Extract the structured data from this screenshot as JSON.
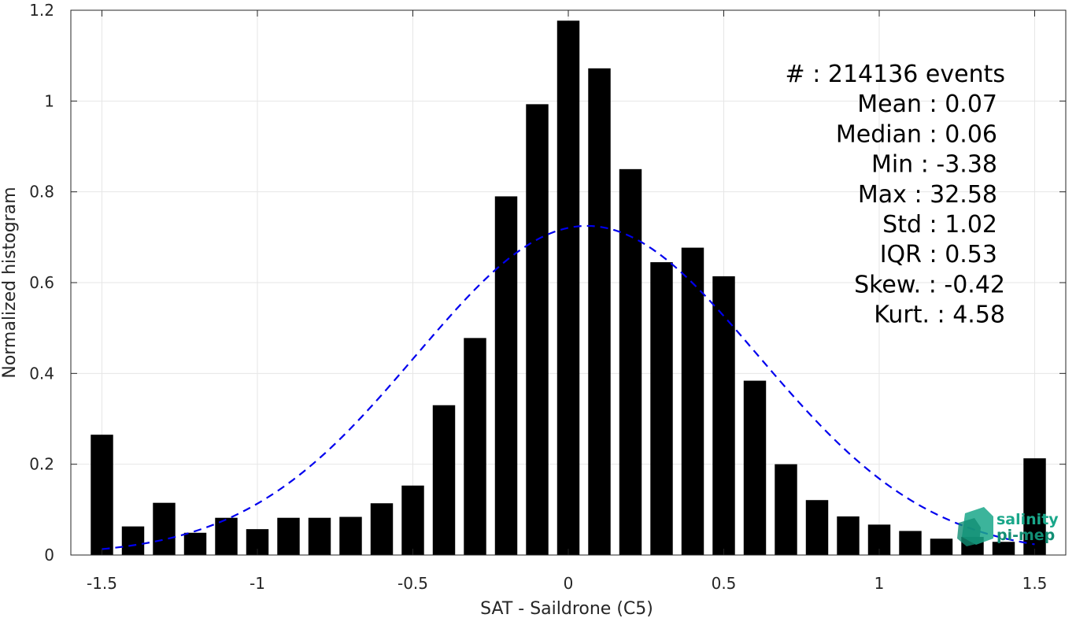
{
  "chart_data": {
    "type": "bar",
    "xlabel": "SAT - Saildrone (C5)",
    "ylabel": "Normalized histogram",
    "xlim": [
      -1.6,
      1.6
    ],
    "ylim": [
      0,
      1.2
    ],
    "grid": true,
    "bin_width": 0.1,
    "x": [
      -1.5,
      -1.4,
      -1.3,
      -1.2,
      -1.1,
      -1.0,
      -0.9,
      -0.8,
      -0.7,
      -0.6,
      -0.5,
      -0.4,
      -0.3,
      -0.2,
      -0.1,
      0.0,
      0.1,
      0.2,
      0.3,
      0.4,
      0.5,
      0.6,
      0.7,
      0.8,
      0.9,
      1.0,
      1.1,
      1.2,
      1.3,
      1.4,
      1.5
    ],
    "values": [
      0.265,
      0.063,
      0.115,
      0.049,
      0.082,
      0.057,
      0.082,
      0.082,
      0.084,
      0.114,
      0.153,
      0.33,
      0.478,
      0.79,
      0.993,
      1.177,
      1.072,
      0.85,
      0.645,
      0.677,
      0.614,
      0.384,
      0.2,
      0.121,
      0.085,
      0.067,
      0.053,
      0.036,
      0.04,
      0.029,
      0.213
    ],
    "fit_curve": {
      "style": "dashed",
      "color": "#0000ee",
      "mean": 0.06,
      "sigma": 0.55,
      "peak": 0.725,
      "x_range": [
        -1.5,
        1.5
      ]
    },
    "xticks": [
      "-1.5",
      "-1",
      "-0.5",
      "0",
      "0.5",
      "1",
      "1.5"
    ],
    "yticks": [
      "0",
      "0.2",
      "0.4",
      "0.6",
      "0.8",
      "1",
      "1.2"
    ],
    "bar_color": "#000000"
  },
  "stats": [
    "#  : 214136 events",
    "Mean : 0.07",
    "Median : 0.06",
    "Min : -3.38",
    "Max : 32.58",
    "Std : 1.02",
    "IQR : 0.53",
    "Skew. : -0.42",
    "Kurt. : 4.58"
  ],
  "logo": {
    "line1": "salinity",
    "line2": "pi-mep",
    "color": "#1aa78a"
  }
}
